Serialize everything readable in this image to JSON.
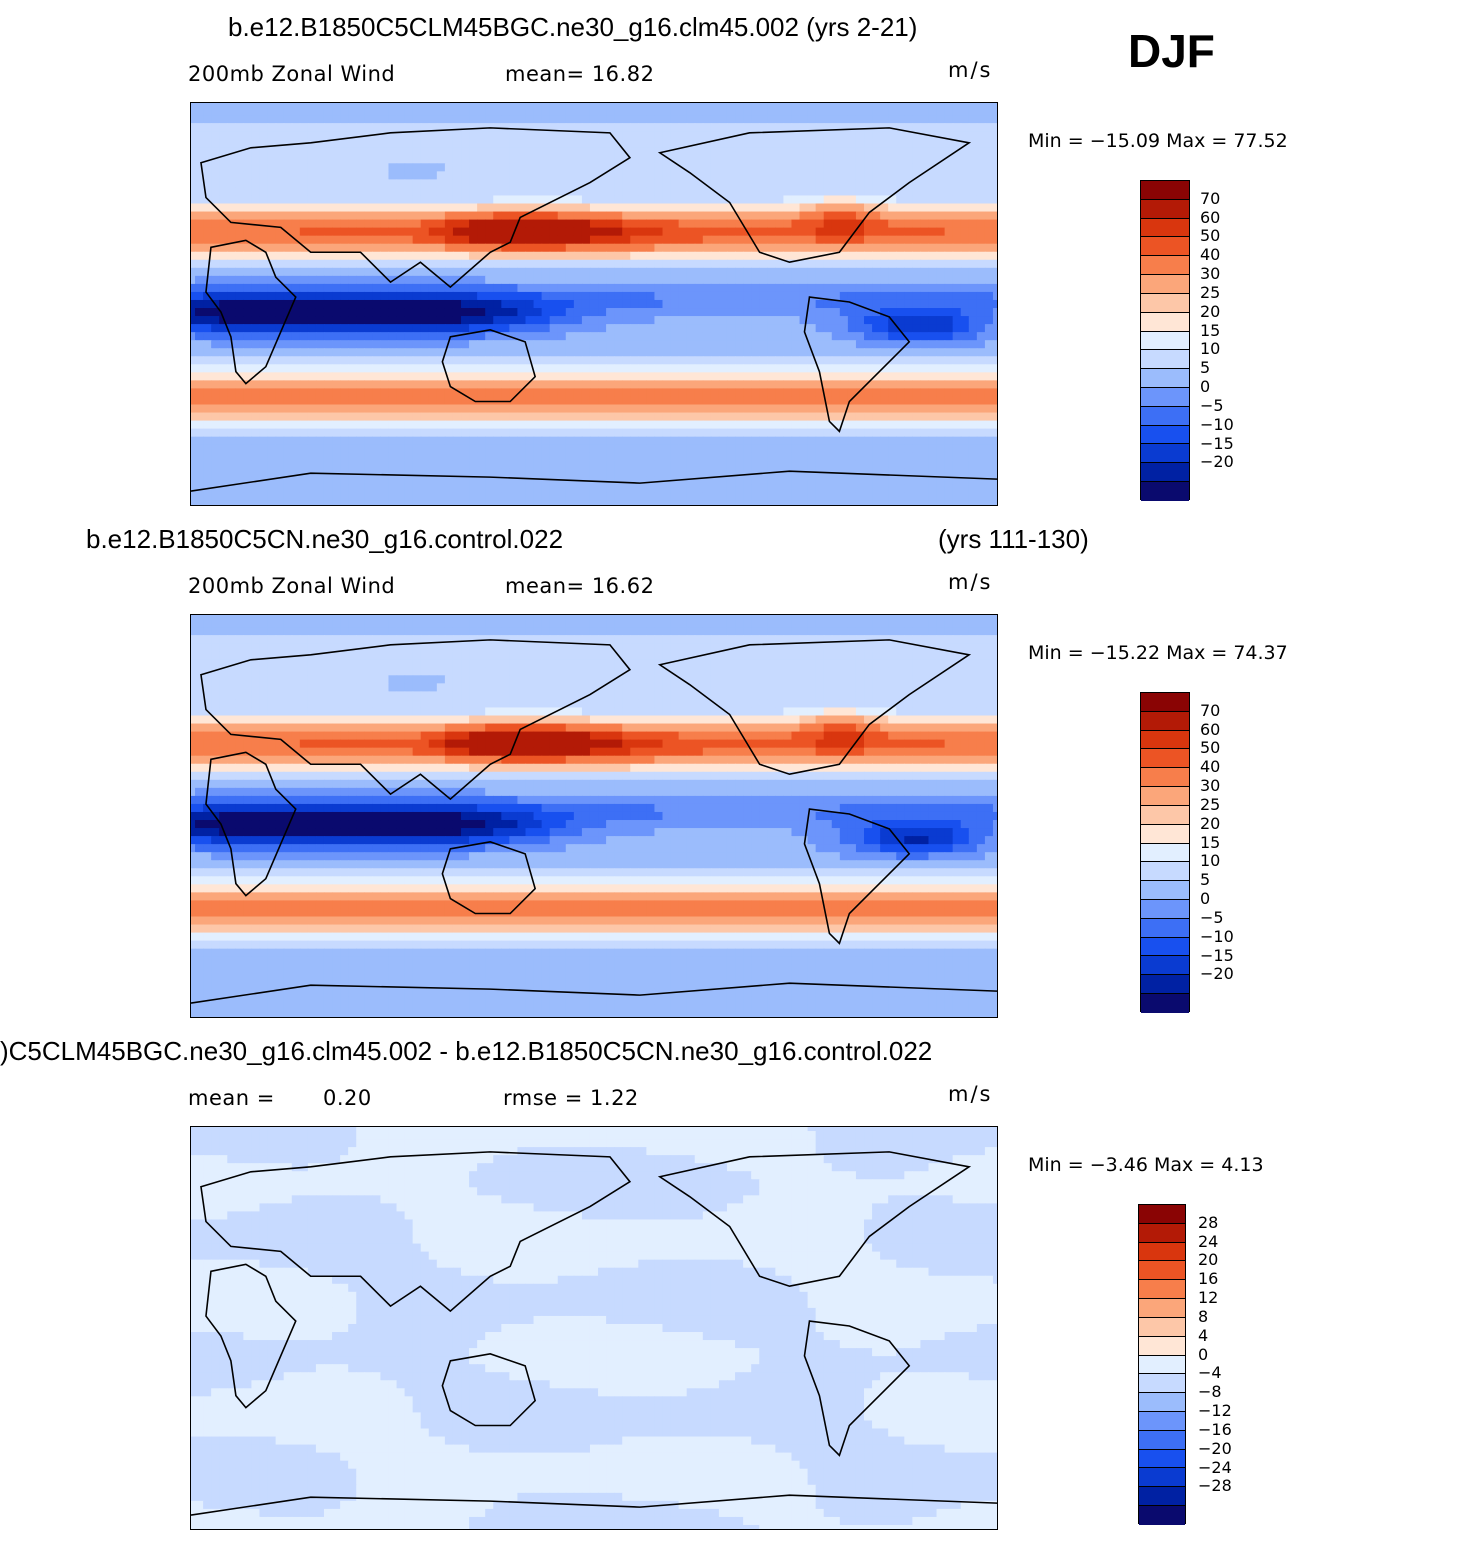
{
  "season": "DJF",
  "colors": {
    "palette_full": [
      "#0a0a6e",
      "#0021a3",
      "#0a3bd1",
      "#1850ef",
      "#3d6ff5",
      "#6c95fb",
      "#9bbcfc",
      "#c7daff",
      "#e2efff",
      "#ffe6d6",
      "#fdc7a8",
      "#fba67a",
      "#f77e4b",
      "#ec5424",
      "#d9360e",
      "#b31a06",
      "#8a0404"
    ],
    "palette_diff": [
      "#0a0a6e",
      "#0021a3",
      "#0a3bd1",
      "#1850ef",
      "#3d6ff5",
      "#6c95fb",
      "#9bbcfc",
      "#c7daff",
      "#e2efff",
      "#ffe6d6",
      "#fdc7a8",
      "#fba67a",
      "#f77e4b",
      "#ec5424",
      "#d9360e",
      "#b31a06",
      "#8a0404"
    ]
  },
  "panels": [
    {
      "id": "test",
      "title": "b.e12.B1850C5CLM45BGC.ne30_g16.clm45.002 (yrs 2-21)",
      "title_right": "",
      "variable": "200mb Zonal Wind",
      "stat1": "mean=   16.82",
      "stat2": "",
      "units": "m/s",
      "minmax": "Min  =  −15.09  Max  =    77.52",
      "legend_ticks": [
        "70",
        "60",
        "50",
        "40",
        "30",
        "25",
        "20",
        "15",
        "10",
        "5",
        "0",
        "−5",
        "−10",
        "−15",
        "−20"
      ],
      "field": "full_a"
    },
    {
      "id": "control",
      "title": "b.e12.B1850C5CN.ne30_g16.control.022",
      "title_right": "(yrs 111-130)",
      "variable": "200mb Zonal Wind",
      "stat1": "mean=   16.62",
      "stat2": "",
      "units": "m/s",
      "minmax": "Min  =  −15.22  Max  =    74.37",
      "legend_ticks": [
        "70",
        "60",
        "50",
        "40",
        "30",
        "25",
        "20",
        "15",
        "10",
        "5",
        "0",
        "−5",
        "−10",
        "−15",
        "−20"
      ],
      "field": "full_b"
    },
    {
      "id": "difference",
      "title": ")C5CLM45BGC.ne30_g16.clm45.002 - b.e12.B1850C5CN.ne30_g16.control.022",
      "title_right": "",
      "variable": "mean  =",
      "stat1": "0.20",
      "stat2": "rmse  =     1.22",
      "units": "m/s",
      "minmax": "Min  =    −3.46  Max  =      4.13",
      "legend_ticks": [
        "28",
        "24",
        "20",
        "16",
        "12",
        "8",
        "4",
        "0",
        "−4",
        "−8",
        "−12",
        "−16",
        "−20",
        "−24",
        "−28"
      ],
      "field": "diff"
    }
  ]
}
